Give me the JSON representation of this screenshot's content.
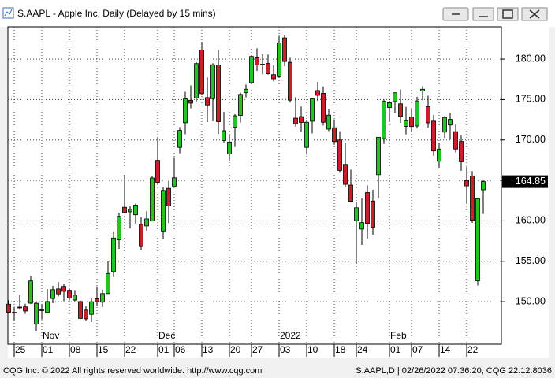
{
  "window": {
    "title": "S.AAPL - Apple Inc, Daily (Delayed by 15 mins)"
  },
  "footer": {
    "left": "CQG Inc. © 2022 All rights reserved worldwide. http://www.cqg.com",
    "right": "S.AAPL,D | 02/26/2022 07:36:20, CQG 22.12.8036"
  },
  "chart_data": {
    "type": "candlestick",
    "categories": [
      null,
      "25",
      null,
      null,
      null,
      null,
      "01",
      null,
      null,
      null,
      null,
      "08",
      null,
      null,
      null,
      null,
      "15",
      null,
      null,
      null,
      null,
      "22",
      null,
      null,
      null,
      null,
      null,
      "01",
      null,
      null,
      "06",
      null,
      null,
      null,
      null,
      "13",
      null,
      null,
      null,
      null,
      "20",
      null,
      null,
      null,
      "27",
      null,
      null,
      null,
      null,
      "03",
      null,
      null,
      null,
      null,
      "10",
      null,
      null,
      null,
      null,
      "18",
      null,
      null,
      null,
      "24",
      null,
      null,
      null,
      null,
      null,
      "01",
      null,
      null,
      null,
      "07",
      null,
      null,
      null,
      null,
      "14",
      null,
      null,
      null,
      null,
      "22",
      null,
      null,
      null
    ],
    "periods": [
      {
        "label": "Nov",
        "start": 6
      },
      {
        "label": "Dec",
        "start": 27
      },
      {
        "label": "2022",
        "start": 49
      },
      {
        "label": "Feb",
        "start": 69
      }
    ],
    "open": [
      149.69,
      148.68,
      149.33,
      149.36,
      149.82,
      147.22,
      148.99,
      148.66,
      150.39,
      151.58,
      151.89,
      151.41,
      150.2,
      150.02,
      148.96,
      148.43,
      150.37,
      149.94,
      151.0,
      153.71,
      157.65,
      161.68,
      161.12,
      160.75,
      159.57,
      159.37,
      159.99,
      167.48,
      158.74,
      164.02,
      164.29,
      169.08,
      172.13,
      174.91,
      175.21,
      181.12,
      175.25,
      175.11,
      179.28,
      169.93,
      168.28,
      171.56,
      173.04,
      175.85,
      177.09,
      180.16,
      179.33,
      179.47,
      178.09,
      177.83,
      182.63,
      179.61,
      172.7,
      172.89,
      169.08,
      172.32,
      176.12,
      175.78,
      171.34,
      171.51,
      170.0,
      166.98,
      164.42,
      160.02,
      158.98,
      163.5,
      162.45,
      165.71,
      170.16,
      174.01,
      174.75,
      174.48,
      171.68,
      172.86,
      171.73,
      176.05,
      174.14,
      172.33,
      167.37,
      170.97,
      171.85,
      171.03,
      169.82,
      164.98,
      165.54,
      152.58,
      163.84
    ],
    "high": [
      150.18,
      149.37,
      150.84,
      149.73,
      153.17,
      149.94,
      149.7,
      151.57,
      151.97,
      152.43,
      152.2,
      151.57,
      151.43,
      150.13,
      149.43,
      150.4,
      151.88,
      151.49,
      155.0,
      158.67,
      161.02,
      165.7,
      161.8,
      162.14,
      160.45,
      161.19,
      165.52,
      170.3,
      164.2,
      164.96,
      167.88,
      171.58,
      175.96,
      176.75,
      179.63,
      182.13,
      177.74,
      179.5,
      181.14,
      173.47,
      170.58,
      173.2,
      175.86,
      176.85,
      180.42,
      181.33,
      180.63,
      180.57,
      179.23,
      182.88,
      182.94,
      180.17,
      175.3,
      174.14,
      172.5,
      175.18,
      177.18,
      176.62,
      173.78,
      172.54,
      171.08,
      169.68,
      166.33,
      162.3,
      162.76,
      164.39,
      163.84,
      170.35,
      175.0,
      174.84,
      175.88,
      176.24,
      174.1,
      173.95,
      175.35,
      176.65,
      175.48,
      173.08,
      169.58,
      172.95,
      173.34,
      171.91,
      170.54,
      166.69,
      166.15,
      162.85,
      165.12
    ],
    "low": [
      148.64,
      147.62,
      149.01,
      148.49,
      149.72,
      146.41,
      147.8,
      148.65,
      149.82,
      150.64,
      150.06,
      150.16,
      150.06,
      147.85,
      147.68,
      147.48,
      149.43,
      149.34,
      150.99,
      153.05,
      156.53,
      161.0,
      159.06,
      159.64,
      156.36,
      158.79,
      159.92,
      164.53,
      157.8,
      159.72,
      164.28,
      168.34,
      170.7,
      173.92,
      174.69,
      175.53,
      172.21,
      172.31,
      170.75,
      169.69,
      167.46,
      169.12,
      172.15,
      175.27,
      177.07,
      178.53,
      178.14,
      178.09,
      177.26,
      177.71,
      179.12,
      174.64,
      171.64,
      171.03,
      168.17,
      170.82,
      174.82,
      171.79,
      171.09,
      169.41,
      165.94,
      164.18,
      162.3,
      154.7,
      157.02,
      157.82,
      158.28,
      162.8,
      169.51,
      172.31,
      173.33,
      172.12,
      170.68,
      170.95,
      171.43,
      174.9,
      171.55,
      168.04,
      166.56,
      170.25,
      170.05,
      168.47,
      166.19,
      162.15,
      159.75,
      152.0,
      160.87
    ],
    "close": [
      148.69,
      148.64,
      149.32,
      148.85,
      152.57,
      149.8,
      148.96,
      150.02,
      151.49,
      150.96,
      151.28,
      150.44,
      150.81,
      147.92,
      147.87,
      149.99,
      150.0,
      151.0,
      153.49,
      157.87,
      160.55,
      161.02,
      161.41,
      161.94,
      156.81,
      160.24,
      165.3,
      164.77,
      163.76,
      161.84,
      165.32,
      171.18,
      175.08,
      174.56,
      179.45,
      175.74,
      174.33,
      179.3,
      172.26,
      171.14,
      169.75,
      172.99,
      175.64,
      176.28,
      180.33,
      179.29,
      179.38,
      178.2,
      177.57,
      182.01,
      179.7,
      174.92,
      172.0,
      172.17,
      172.19,
      175.08,
      175.53,
      172.19,
      173.07,
      169.8,
      166.23,
      164.51,
      162.41,
      161.62,
      159.78,
      159.69,
      159.22,
      170.33,
      174.78,
      174.61,
      175.84,
      172.9,
      172.39,
      171.66,
      174.83,
      176.28,
      172.12,
      168.64,
      168.88,
      172.79,
      172.55,
      168.88,
      167.3,
      164.32,
      160.07,
      162.74,
      164.85
    ],
    "up_color": "#22c322",
    "down_color": "#c8202a",
    "ylim": [
      144.75,
      184
    ],
    "yticks": [
      {
        "value": 150,
        "label": "150.00"
      },
      {
        "value": 155,
        "label": "155.00"
      },
      {
        "value": 160,
        "label": "160.00"
      },
      {
        "value": 165,
        "label": "165.00"
      },
      {
        "value": 170,
        "label": "170.00"
      },
      {
        "value": 175,
        "label": "175.00"
      },
      {
        "value": 180,
        "label": "180.00"
      }
    ],
    "grid": true
  }
}
